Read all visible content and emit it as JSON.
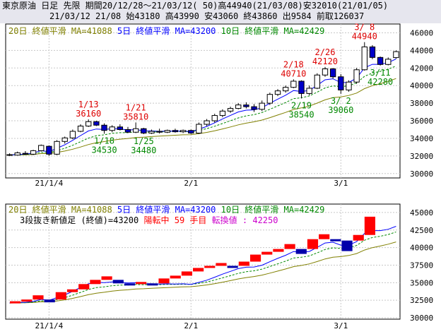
{
  "header": {
    "line1": "東京原油 日足 先限 期間20/12/28～21/03/12( 50)高44940(21/03/08)安32010(21/01/05)",
    "line2": "21/03/12 21/08 始43180 高43990 安43060 終43860 出9584 前取126037"
  },
  "colors": {
    "candle_up_fill": "#ffffff",
    "candle_down_fill": "#0000c8",
    "ma5": "#0000ff",
    "ma10": "#008800",
    "ma20": "#808000",
    "annot_high": "#dd0000",
    "annot_low": "#008800",
    "renko_up": "#ff0000",
    "renko_down": "#0000aa",
    "turn_text": "#ff0000",
    "turn_value": "#cc00cc"
  },
  "chart_data": [
    {
      "type": "candlestick",
      "legend": [
        {
          "text": "20日 終値平滑 MA=41088",
          "color": "#808000"
        },
        {
          "text": "5日 終値平滑 MA=43200",
          "color": "#0000ff"
        },
        {
          "text": "10日 終値平滑 MA=42429",
          "color": "#008800"
        }
      ],
      "yticks": [
        30000,
        32000,
        34000,
        36000,
        38000,
        40000,
        42000,
        44000,
        46000
      ],
      "ylim": [
        29500,
        47000
      ],
      "xticks": [
        {
          "i": 5,
          "label": "21/1/4"
        },
        {
          "i": 23,
          "label": "2/1"
        },
        {
          "i": 42,
          "label": "3/1"
        }
      ],
      "candles": [
        {
          "o": 32150,
          "h": 32300,
          "l": 32000,
          "c": 32100
        },
        {
          "o": 32100,
          "h": 32500,
          "l": 32050,
          "c": 32350
        },
        {
          "o": 32300,
          "h": 32550,
          "l": 32150,
          "c": 32200
        },
        {
          "o": 32200,
          "h": 32700,
          "l": 32100,
          "c": 32600
        },
        {
          "o": 32600,
          "h": 33300,
          "l": 32500,
          "c": 33200
        },
        {
          "o": 33100,
          "h": 33200,
          "l": 32010,
          "c": 32200
        },
        {
          "o": 32200,
          "h": 33800,
          "l": 32100,
          "c": 33650
        },
        {
          "o": 33650,
          "h": 34200,
          "l": 33400,
          "c": 34050
        },
        {
          "o": 34050,
          "h": 35000,
          "l": 33900,
          "c": 34800
        },
        {
          "o": 34800,
          "h": 35600,
          "l": 34700,
          "c": 35400
        },
        {
          "o": 35400,
          "h": 36160,
          "l": 35300,
          "c": 35900
        },
        {
          "o": 35900,
          "h": 36000,
          "l": 35400,
          "c": 35500
        },
        {
          "o": 35500,
          "h": 35700,
          "l": 34530,
          "c": 34900
        },
        {
          "o": 34900,
          "h": 35500,
          "l": 34700,
          "c": 35300
        },
        {
          "o": 35300,
          "h": 35600,
          "l": 34900,
          "c": 35000
        },
        {
          "o": 35000,
          "h": 35300,
          "l": 34600,
          "c": 34700
        },
        {
          "o": 34700,
          "h": 35810,
          "l": 34600,
          "c": 35100
        },
        {
          "o": 35100,
          "h": 35200,
          "l": 34480,
          "c": 34600
        },
        {
          "o": 34600,
          "h": 35000,
          "l": 34500,
          "c": 34800
        },
        {
          "o": 34800,
          "h": 35100,
          "l": 34550,
          "c": 34700
        },
        {
          "o": 34700,
          "h": 35000,
          "l": 34600,
          "c": 34900
        },
        {
          "o": 34900,
          "h": 35100,
          "l": 34650,
          "c": 34750
        },
        {
          "o": 34750,
          "h": 35000,
          "l": 34600,
          "c": 34900
        },
        {
          "o": 34900,
          "h": 35000,
          "l": 34500,
          "c": 34600
        },
        {
          "o": 34600,
          "h": 35800,
          "l": 34500,
          "c": 35600
        },
        {
          "o": 35600,
          "h": 36200,
          "l": 35400,
          "c": 36000
        },
        {
          "o": 36000,
          "h": 36800,
          "l": 35800,
          "c": 36600
        },
        {
          "o": 36600,
          "h": 37300,
          "l": 36400,
          "c": 37100
        },
        {
          "o": 37100,
          "h": 37600,
          "l": 36900,
          "c": 37400
        },
        {
          "o": 37400,
          "h": 38000,
          "l": 37300,
          "c": 37800
        },
        {
          "o": 37800,
          "h": 38100,
          "l": 37400,
          "c": 37600
        },
        {
          "o": 37600,
          "h": 37900,
          "l": 37000,
          "c": 37300
        },
        {
          "o": 37300,
          "h": 38300,
          "l": 37100,
          "c": 38000
        },
        {
          "o": 38000,
          "h": 39200,
          "l": 37800,
          "c": 39000
        },
        {
          "o": 39000,
          "h": 39600,
          "l": 38800,
          "c": 39400
        },
        {
          "o": 39400,
          "h": 40000,
          "l": 39200,
          "c": 39800
        },
        {
          "o": 39800,
          "h": 40710,
          "l": 39700,
          "c": 40500
        },
        {
          "o": 40500,
          "h": 40600,
          "l": 38540,
          "c": 39100
        },
        {
          "o": 39100,
          "h": 40000,
          "l": 38900,
          "c": 39700
        },
        {
          "o": 39700,
          "h": 41400,
          "l": 39600,
          "c": 41200
        },
        {
          "o": 41200,
          "h": 42120,
          "l": 41000,
          "c": 41900
        },
        {
          "o": 41900,
          "h": 42000,
          "l": 40800,
          "c": 41000
        },
        {
          "o": 41000,
          "h": 41300,
          "l": 39060,
          "c": 39500
        },
        {
          "o": 39500,
          "h": 40600,
          "l": 39300,
          "c": 40400
        },
        {
          "o": 40400,
          "h": 42000,
          "l": 40200,
          "c": 41800
        },
        {
          "o": 41800,
          "h": 44940,
          "l": 41700,
          "c": 44400
        },
        {
          "o": 44400,
          "h": 44600,
          "l": 43000,
          "c": 43200
        },
        {
          "o": 43200,
          "h": 43300,
          "l": 42280,
          "c": 42400
        },
        {
          "o": 42400,
          "h": 43200,
          "l": 42300,
          "c": 43000
        },
        {
          "o": 43180,
          "h": 43990,
          "l": 43060,
          "c": 43860
        }
      ],
      "annotations": [
        {
          "i": 10,
          "kind": "high",
          "date": "1/13",
          "value": "36160"
        },
        {
          "i": 16,
          "kind": "high",
          "date": "1/21",
          "value": "35810"
        },
        {
          "i": 36,
          "kind": "high",
          "date": "2/18",
          "value": "40710"
        },
        {
          "i": 40,
          "kind": "high",
          "date": "2/26",
          "value": "42120"
        },
        {
          "i": 45,
          "kind": "high",
          "date": "3/ 8",
          "value": "44940"
        },
        {
          "i": 12,
          "kind": "low",
          "date": "1/18",
          "value": "34530"
        },
        {
          "i": 17,
          "kind": "low",
          "date": "1/25",
          "value": "34480"
        },
        {
          "i": 37,
          "kind": "low",
          "date": "2/19",
          "value": "38540"
        },
        {
          "i": 42,
          "kind": "low",
          "date": "3/ 2",
          "value": "39060"
        },
        {
          "i": 47,
          "kind": "low",
          "date": "3/11",
          "value": "42280"
        }
      ]
    },
    {
      "type": "renko",
      "title": "3段抜き新値足 (終値)=43200",
      "status": "陽転中",
      "count_text": "59 手目",
      "turn_label": "転換値 :",
      "turn_value": "42250",
      "legend": [
        {
          "text": "20日 終値平滑 MA=41088",
          "color": "#808000"
        },
        {
          "text": "5日 終値平滑 MA=43200",
          "color": "#0000ff"
        },
        {
          "text": "10日 終値平滑 MA=42429",
          "color": "#008800"
        }
      ],
      "yticks": [
        30000,
        32500,
        35000,
        37500,
        40000,
        42500,
        45000
      ],
      "ylim": [
        29800,
        46200
      ],
      "xticks": [
        {
          "i": 5,
          "label": "21/1/4"
        },
        {
          "i": 23,
          "label": "2/1"
        },
        {
          "i": 42,
          "label": "3/1"
        }
      ]
    }
  ]
}
